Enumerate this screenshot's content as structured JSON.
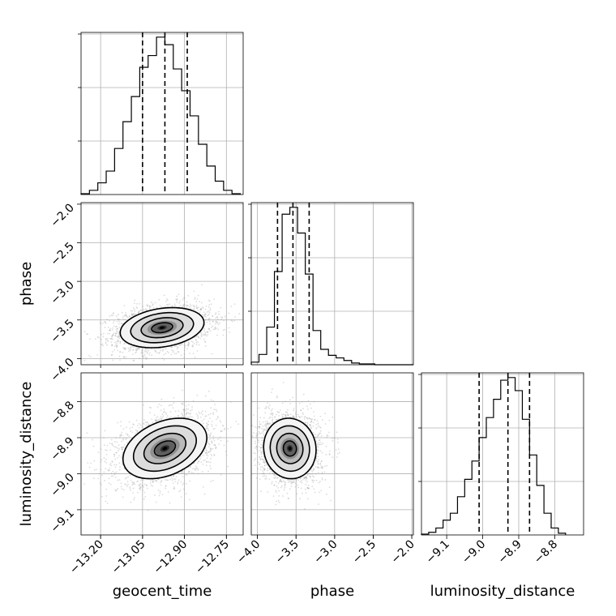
{
  "chart_data": {
    "type": "corner",
    "parameters": [
      "geocent_time",
      "phase",
      "luminosity_distance"
    ],
    "axis_labels": {
      "x": [
        "geocent_time",
        "phase",
        "luminosity_distance"
      ],
      "y": [
        "phase",
        "luminosity_distance"
      ]
    },
    "ranges": {
      "geocent_time": [
        -13.27,
        -12.69
      ],
      "phase": [
        -4.08,
        -1.98
      ],
      "luminosity_distance": [
        -9.17,
        -8.72
      ]
    },
    "ticks": {
      "geocent_time": {
        "values": [
          -13.2,
          -13.05,
          -12.9,
          -12.75
        ],
        "labels": [
          "−13.20",
          "−13.05",
          "−12.90",
          "−12.75"
        ]
      },
      "phase": {
        "values": [
          -4.0,
          -3.5,
          -3.0,
          -2.5,
          -2.0
        ],
        "labels": [
          "−4.0",
          "−3.5",
          "−3.0",
          "−2.5",
          "−2.0"
        ]
      },
      "luminosity_distance": {
        "values": [
          -9.1,
          -9.0,
          -8.9,
          -8.8
        ],
        "labels": [
          "−9.1",
          "−9.0",
          "−8.9",
          "−8.8"
        ]
      }
    },
    "quantiles": {
      "geocent_time": [
        -13.05,
        -12.97,
        -12.89
      ],
      "phase": [
        -3.74,
        -3.54,
        -3.33
      ],
      "luminosity_distance": [
        -9.01,
        -8.93,
        -8.87
      ]
    },
    "histograms": {
      "geocent_time": {
        "edges": [
          -13.27,
          -13.24,
          -13.21,
          -13.18,
          -13.15,
          -13.12,
          -13.09,
          -13.06,
          -13.03,
          -13.0,
          -12.97,
          -12.94,
          -12.91,
          -12.88,
          -12.85,
          -12.82,
          -12.79,
          -12.76,
          -12.73,
          -12.7
        ],
        "counts": [
          1,
          5,
          14,
          28,
          55,
          87,
          117,
          152,
          166,
          188,
          179,
          150,
          124,
          94,
          60,
          34,
          16,
          5,
          1
        ]
      },
      "phase": {
        "edges": [
          -4.08,
          -3.98,
          -3.88,
          -3.78,
          -3.68,
          -3.58,
          -3.48,
          -3.38,
          -3.28,
          -3.18,
          -3.08,
          -2.98,
          -2.88,
          -2.78,
          -2.68,
          -2.58,
          -2.48,
          -2.38,
          -2.28,
          -2.18,
          -2.08,
          -1.98
        ],
        "counts": [
          3,
          12,
          44,
          109,
          176,
          184,
          154,
          106,
          40,
          18,
          11,
          8,
          5,
          2,
          1,
          1,
          0,
          0,
          0,
          0,
          0
        ]
      },
      "luminosity_distance": {
        "edges": [
          -9.17,
          -9.15,
          -9.13,
          -9.11,
          -9.09,
          -9.07,
          -9.05,
          -9.03,
          -9.01,
          -8.99,
          -8.97,
          -8.95,
          -8.93,
          -8.91,
          -8.89,
          -8.87,
          -8.85,
          -8.83,
          -8.81,
          -8.79,
          -8.77
        ],
        "counts": [
          1,
          3,
          8,
          17,
          25,
          44,
          64,
          85,
          112,
          135,
          156,
          178,
          181,
          166,
          133,
          92,
          57,
          25,
          8,
          2
        ]
      }
    },
    "density_panels": [
      {
        "x": "geocent_time",
        "y": "phase",
        "center": [
          -12.98,
          -3.6
        ],
        "sigma": [
          0.075,
          0.13
        ],
        "rho": 0.25
      },
      {
        "x": "geocent_time",
        "y": "luminosity_distance",
        "center": [
          -12.97,
          -8.93
        ],
        "sigma": [
          0.075,
          0.042
        ],
        "rho": 0.35
      },
      {
        "x": "phase",
        "y": "luminosity_distance",
        "center": [
          -3.58,
          -8.93
        ],
        "sigma": [
          0.17,
          0.042
        ],
        "rho": -0.05
      }
    ],
    "contour_levels_sigma": [
      0.5,
      1.0,
      1.5,
      2.0
    ],
    "grid": true
  }
}
